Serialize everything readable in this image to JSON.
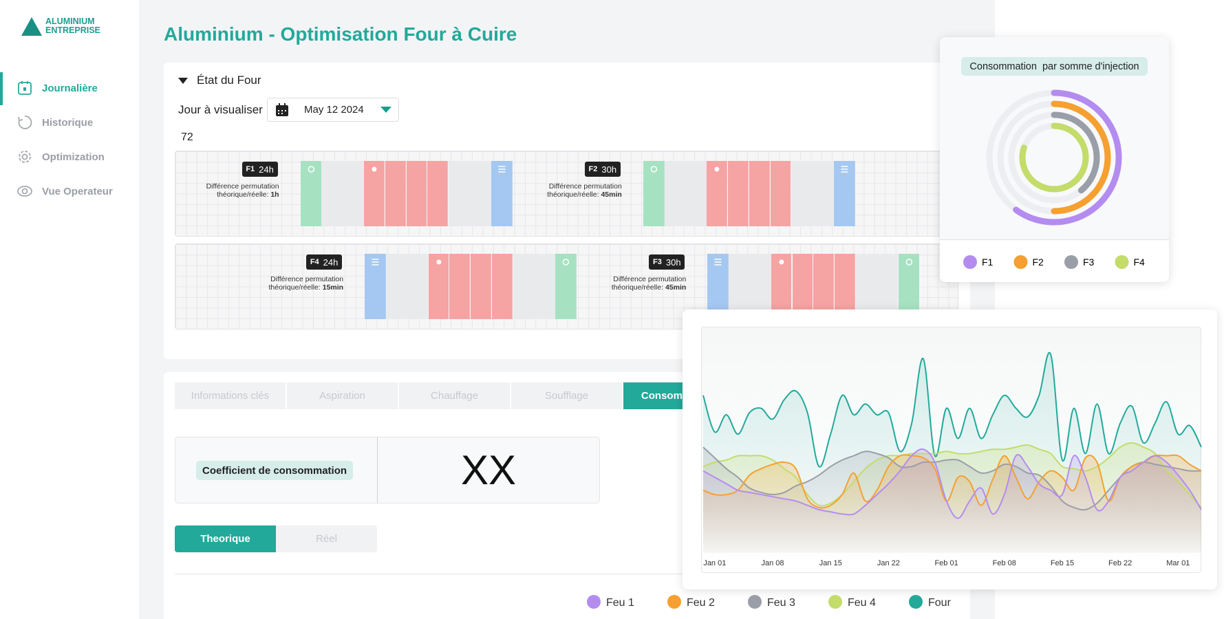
{
  "sidebar": {
    "logo": [
      "ALUMINIUM",
      "ENTREPRISE"
    ],
    "nav": [
      "Journalière",
      "Historique",
      "Optimization",
      "Vue Operateur"
    ]
  },
  "header": {
    "title": "Aluminium - Optimisation Four à Cuire"
  },
  "panel": {
    "title": "État du Four",
    "day_label": "Jour à visualiser",
    "date": "May 12 2024",
    "count": 72,
    "furnaces": [
      {
        "name": "F1",
        "duration": "24h",
        "note": "Différence permutation",
        "note2": "théorique/réelle:",
        "diff": "1h"
      },
      {
        "name": "F2",
        "duration": "30h",
        "note": "Différence permutation",
        "note2": "théorique/réelle:",
        "diff": "45min"
      },
      {
        "name": "F4",
        "duration": "24h",
        "note": "Différence permutation",
        "note2": "théorique/réelle:",
        "diff": "15min"
      },
      {
        "name": "F3",
        "duration": "30h",
        "note": "Différence permutation",
        "note2": "théorique/réelle:",
        "diff": "45min"
      }
    ]
  },
  "tabs": [
    "Informations clés",
    "Aspiration",
    "Chauffage",
    "Soufflage",
    "Consommation"
  ],
  "coefficient": {
    "label": "Coefficient de consommation",
    "value": "XX"
  },
  "toggle": [
    "Theorique",
    "Réel"
  ],
  "chart_data": [
    {
      "type": "radial_bar",
      "title": "Consommation  par somme d'injection",
      "ylim": [
        0,
        100
      ],
      "categories": [
        "F1",
        "F2",
        "F3",
        "F4"
      ],
      "values": [
        60,
        50,
        39,
        80
      ],
      "colors": [
        "#b48cf0",
        "#f5a030",
        "#9a9ea8",
        "#c3dc6a"
      ]
    },
    {
      "type": "area",
      "x": [
        -1,
        0,
        1,
        2,
        3,
        4,
        5,
        6,
        7,
        8,
        9,
        10,
        11,
        12,
        13,
        14,
        15,
        16,
        17,
        18,
        19,
        20,
        21,
        22,
        23,
        24,
        25,
        26,
        27,
        28,
        29,
        30,
        31,
        32,
        33,
        34,
        35,
        36,
        37,
        38,
        39,
        40,
        41,
        42
      ],
      "xlim": [
        -1,
        42
      ],
      "xticks": [
        {
          "value": 0,
          "label": "Jan 01"
        },
        {
          "value": 5,
          "label": "Jan 08"
        },
        {
          "value": 10,
          "label": "Jan 15"
        },
        {
          "value": 15,
          "label": "Jan 22"
        },
        {
          "value": 20,
          "label": "Feb 01"
        },
        {
          "value": 25,
          "label": "Feb 08"
        },
        {
          "value": 30,
          "label": "Feb 15"
        },
        {
          "value": 35,
          "label": "Feb 22"
        },
        {
          "value": 40,
          "label": "Mar 01"
        }
      ],
      "ylim": [
        0,
        100
      ],
      "series": [
        {
          "name": "Feu 1",
          "color": "#b48cf0",
          "values": [
            38,
            35,
            32,
            29,
            28,
            27,
            26,
            25,
            24,
            22,
            20,
            19,
            18,
            18,
            22,
            27,
            32,
            38,
            45,
            48,
            42,
            24,
            16,
            24,
            30,
            18,
            27,
            45,
            40,
            32,
            29,
            27,
            45,
            35,
            20,
            24,
            35,
            38,
            42,
            45,
            42,
            36,
            29,
            20
          ]
        },
        {
          "name": "Feu 2",
          "color": "#f5a030",
          "values": [
            29,
            27,
            27,
            29,
            36,
            39,
            41,
            42,
            39,
            25,
            21,
            22,
            27,
            37,
            24,
            29,
            40,
            45,
            45,
            44,
            39,
            24,
            35,
            33,
            22,
            34,
            45,
            35,
            25,
            33,
            38,
            35,
            29,
            44,
            42,
            24,
            35,
            40,
            42,
            45,
            45,
            45,
            41,
            38
          ]
        },
        {
          "name": "Feu 3",
          "color": "#9a9ea8",
          "values": [
            49,
            44,
            39,
            35,
            30,
            28,
            27,
            28,
            31,
            33,
            36,
            40,
            43,
            45,
            47,
            46,
            44,
            40,
            40,
            42,
            42,
            43,
            43,
            40,
            37,
            38,
            41,
            40,
            37,
            36,
            31,
            24,
            21,
            20,
            23,
            29,
            35,
            40,
            42,
            41,
            40,
            39,
            38,
            38
          ]
        },
        {
          "name": "Feu 4",
          "color": "#c3dc6a",
          "values": [
            40,
            42,
            43,
            45,
            45,
            45,
            43,
            39,
            35,
            27,
            22,
            23,
            27,
            33,
            39,
            43,
            45,
            45,
            46,
            46,
            46,
            47,
            46,
            46,
            47,
            48,
            48,
            49,
            50,
            48,
            46,
            40,
            39,
            38,
            40,
            44,
            49,
            51,
            49,
            46,
            38,
            33,
            27,
            21
          ]
        },
        {
          "name": "Four",
          "color": "#22a99a",
          "values": [
            73,
            56,
            64,
            55,
            65,
            67,
            62,
            71,
            75,
            65,
            40,
            55,
            73,
            64,
            69,
            64,
            65,
            47,
            60,
            90,
            45,
            67,
            53,
            67,
            53,
            64,
            73,
            67,
            63,
            73,
            92,
            43,
            67,
            46,
            69,
            46,
            60,
            68,
            51,
            60,
            70,
            55,
            59,
            49
          ]
        }
      ]
    }
  ]
}
